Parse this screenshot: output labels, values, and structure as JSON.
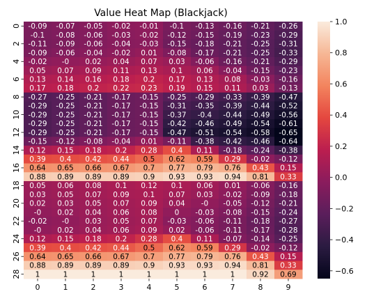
{
  "chart_data": {
    "type": "heatmap",
    "title": "Value Heat Map (Blackjack)",
    "xlabel": "",
    "ylabel": "",
    "x_ticks": [
      "0",
      "1",
      "2",
      "3",
      "4",
      "5",
      "6",
      "7",
      "8",
      "9"
    ],
    "y_ticks": [
      "0",
      "2",
      "4",
      "6",
      "8",
      "10",
      "12",
      "14",
      "16",
      "18",
      "20",
      "22",
      "24",
      "26",
      "28"
    ],
    "colorbar": {
      "min": -0.65,
      "max": 1.0,
      "ticks": [
        "1.0",
        "0.8",
        "0.6",
        "0.4",
        "0.2",
        "0.0",
        "−0.2",
        "−0.4",
        "−0.6"
      ],
      "tick_values": [
        1.0,
        0.8,
        0.6,
        0.4,
        0.2,
        0.0,
        -0.2,
        -0.4,
        -0.6
      ]
    },
    "colormap": "rocket",
    "values": [
      [
        -0.09,
        -0.07,
        -0.05,
        -0.02,
        -0.01,
        -0.1,
        -0.13,
        -0.16,
        -0.21,
        -0.26
      ],
      [
        -0.1,
        -0.08,
        -0.06,
        -0.03,
        -0.02,
        -0.12,
        -0.15,
        -0.19,
        -0.23,
        -0.29
      ],
      [
        -0.11,
        -0.09,
        -0.06,
        -0.04,
        -0.03,
        -0.15,
        -0.18,
        -0.21,
        -0.25,
        -0.31
      ],
      [
        -0.09,
        -0.06,
        -0.04,
        -0.02,
        0.01,
        -0.08,
        -0.17,
        -0.21,
        -0.25,
        -0.33
      ],
      [
        -0.02,
        0,
        0.02,
        0.04,
        0.07,
        0.03,
        -0.06,
        -0.16,
        -0.21,
        -0.29
      ],
      [
        0.05,
        0.07,
        0.09,
        0.11,
        0.13,
        0.1,
        0.06,
        -0.04,
        -0.15,
        -0.23
      ],
      [
        0.13,
        0.14,
        0.16,
        0.18,
        0.2,
        0.17,
        0.13,
        0.08,
        -0.03,
        -0.16
      ],
      [
        0.17,
        0.18,
        0.2,
        0.22,
        0.23,
        0.19,
        0.15,
        0.11,
        0.03,
        -0.13
      ],
      [
        -0.27,
        -0.25,
        -0.21,
        -0.17,
        -0.15,
        -0.25,
        -0.29,
        -0.33,
        -0.39,
        -0.47
      ],
      [
        -0.29,
        -0.25,
        -0.21,
        -0.17,
        -0.15,
        -0.31,
        -0.35,
        -0.39,
        -0.44,
        -0.52
      ],
      [
        -0.29,
        -0.25,
        -0.21,
        -0.17,
        -0.15,
        -0.37,
        -0.4,
        -0.44,
        -0.49,
        -0.56
      ],
      [
        -0.29,
        -0.25,
        -0.21,
        -0.17,
        -0.15,
        -0.42,
        -0.46,
        -0.49,
        -0.54,
        -0.61
      ],
      [
        -0.29,
        -0.25,
        -0.21,
        -0.17,
        -0.15,
        -0.47,
        -0.51,
        -0.54,
        -0.58,
        -0.65
      ],
      [
        -0.15,
        -0.12,
        -0.08,
        -0.04,
        0.01,
        -0.11,
        -0.38,
        -0.42,
        -0.46,
        -0.64
      ],
      [
        0.12,
        0.15,
        0.18,
        0.2,
        0.28,
        0.4,
        0.11,
        -0.18,
        -0.24,
        -0.38
      ],
      [
        0.39,
        0.4,
        0.42,
        0.44,
        0.5,
        0.62,
        0.59,
        0.29,
        -0.02,
        -0.12
      ],
      [
        0.64,
        0.65,
        0.66,
        0.67,
        0.7,
        0.77,
        0.79,
        0.76,
        0.43,
        0.15
      ],
      [
        0.88,
        0.89,
        0.89,
        0.89,
        0.9,
        0.93,
        0.93,
        0.94,
        0.81,
        0.33
      ],
      [
        0.05,
        0.06,
        0.08,
        0.1,
        0.12,
        0.1,
        0.06,
        0.01,
        -0.06,
        -0.16
      ],
      [
        0.03,
        0.05,
        0.07,
        0.09,
        0.1,
        0.07,
        0.03,
        -0.02,
        -0.09,
        -0.18
      ],
      [
        0.02,
        0.03,
        0.05,
        0.07,
        0.09,
        0.04,
        0,
        -0.05,
        -0.12,
        -0.21
      ],
      [
        0,
        0.02,
        0.04,
        0.06,
        0.08,
        0,
        -0.03,
        -0.08,
        -0.15,
        -0.24
      ],
      [
        -0.02,
        0,
        0.03,
        0.05,
        0.07,
        -0.03,
        -0.06,
        -0.11,
        -0.18,
        -0.27
      ],
      [
        0,
        0.02,
        0.04,
        0.06,
        0.09,
        0.02,
        -0.06,
        -0.11,
        -0.17,
        -0.28
      ],
      [
        0.12,
        0.15,
        0.18,
        0.2,
        0.28,
        0.4,
        0.11,
        -0.07,
        -0.14,
        -0.25
      ],
      [
        0.39,
        0.4,
        0.42,
        0.44,
        0.5,
        0.62,
        0.59,
        0.29,
        -0.02,
        -0.12
      ],
      [
        0.64,
        0.65,
        0.66,
        0.67,
        0.7,
        0.77,
        0.79,
        0.76,
        0.43,
        0.15
      ],
      [
        0.88,
        0.89,
        0.89,
        0.89,
        0.9,
        0.93,
        0.93,
        0.94,
        0.81,
        0.33
      ],
      [
        1,
        1,
        1,
        1,
        1,
        1,
        1,
        1,
        0.92,
        0.69
      ]
    ],
    "labels": [
      [
        "-0.09",
        "-0.07",
        "-0.05",
        "-0.02",
        "-0.01",
        "-0.1",
        "-0.13",
        "-0.16",
        "-0.21",
        "-0.26"
      ],
      [
        "-0.1",
        "-0.08",
        "-0.06",
        "-0.03",
        "-0.02",
        "-0.12",
        "-0.15",
        "-0.19",
        "-0.23",
        "-0.29"
      ],
      [
        "-0.11",
        "-0.09",
        "-0.06",
        "-0.04",
        "-0.03",
        "-0.15",
        "-0.18",
        "-0.21",
        "-0.25",
        "-0.31"
      ],
      [
        "-0.09",
        "-0.06",
        "-0.04",
        "-0.02",
        "0.01",
        "-0.08",
        "-0.17",
        "-0.21",
        "-0.25",
        "-0.33"
      ],
      [
        "-0.02",
        "-0",
        "0.02",
        "0.04",
        "0.07",
        "0.03",
        "-0.06",
        "-0.16",
        "-0.21",
        "-0.29"
      ],
      [
        "0.05",
        "0.07",
        "0.09",
        "0.11",
        "0.13",
        "0.1",
        "0.06",
        "-0.04",
        "-0.15",
        "-0.23"
      ],
      [
        "0.13",
        "0.14",
        "0.16",
        "0.18",
        "0.2",
        "0.17",
        "0.13",
        "0.08",
        "-0.03",
        "-0.16"
      ],
      [
        "0.17",
        "0.18",
        "0.2",
        "0.22",
        "0.23",
        "0.19",
        "0.15",
        "0.11",
        "0.03",
        "-0.13"
      ],
      [
        "-0.27",
        "-0.25",
        "-0.21",
        "-0.17",
        "-0.15",
        "-0.25",
        "-0.29",
        "-0.33",
        "-0.39",
        "-0.47"
      ],
      [
        "-0.29",
        "-0.25",
        "-0.21",
        "-0.17",
        "-0.15",
        "-0.31",
        "-0.35",
        "-0.39",
        "-0.44",
        "-0.52"
      ],
      [
        "-0.29",
        "-0.25",
        "-0.21",
        "-0.17",
        "-0.15",
        "-0.37",
        "-0.4",
        "-0.44",
        "-0.49",
        "-0.56"
      ],
      [
        "-0.29",
        "-0.25",
        "-0.21",
        "-0.17",
        "-0.15",
        "-0.42",
        "-0.46",
        "-0.49",
        "-0.54",
        "-0.61"
      ],
      [
        "-0.29",
        "-0.25",
        "-0.21",
        "-0.17",
        "-0.15",
        "-0.47",
        "-0.51",
        "-0.54",
        "-0.58",
        "-0.65"
      ],
      [
        "-0.15",
        "-0.12",
        "-0.08",
        "-0.04",
        "0.01",
        "-0.11",
        "-0.38",
        "-0.42",
        "-0.46",
        "-0.64"
      ],
      [
        "0.12",
        "0.15",
        "0.18",
        "0.2",
        "0.28",
        "0.4",
        "0.11",
        "-0.18",
        "-0.24",
        "-0.38"
      ],
      [
        "0.39",
        "0.4",
        "0.42",
        "0.44",
        "0.5",
        "0.62",
        "0.59",
        "0.29",
        "-0.02",
        "-0.12"
      ],
      [
        "0.64",
        "0.65",
        "0.66",
        "0.67",
        "0.7",
        "0.77",
        "0.79",
        "0.76",
        "0.43",
        "0.15"
      ],
      [
        "0.88",
        "0.89",
        "0.89",
        "0.89",
        "0.9",
        "0.93",
        "0.93",
        "0.94",
        "0.81",
        "0.33"
      ],
      [
        "0.05",
        "0.06",
        "0.08",
        "0.1",
        "0.12",
        "0.1",
        "0.06",
        "0.01",
        "-0.06",
        "-0.16"
      ],
      [
        "0.03",
        "0.05",
        "0.07",
        "0.09",
        "0.1",
        "0.07",
        "0.03",
        "-0.02",
        "-0.09",
        "-0.18"
      ],
      [
        "0.02",
        "0.03",
        "0.05",
        "0.07",
        "0.09",
        "0.04",
        "-0",
        "-0.05",
        "-0.12",
        "-0.21"
      ],
      [
        "-0",
        "0.02",
        "0.04",
        "0.06",
        "0.08",
        "0",
        "-0.03",
        "-0.08",
        "-0.15",
        "-0.24"
      ],
      [
        "-0.02",
        "-0",
        "0.03",
        "0.05",
        "0.07",
        "-0.03",
        "-0.06",
        "-0.11",
        "-0.18",
        "-0.27"
      ],
      [
        "-0",
        "0.02",
        "0.04",
        "0.06",
        "0.09",
        "0.02",
        "-0.06",
        "-0.11",
        "-0.17",
        "-0.28"
      ],
      [
        "0.12",
        "0.15",
        "0.18",
        "0.2",
        "0.28",
        "0.4",
        "0.11",
        "-0.07",
        "-0.14",
        "-0.25"
      ],
      [
        "0.39",
        "0.4",
        "0.42",
        "0.44",
        "0.5",
        "0.62",
        "0.59",
        "0.29",
        "-0.02",
        "-0.12"
      ],
      [
        "0.64",
        "0.65",
        "0.66",
        "0.67",
        "0.7",
        "0.77",
        "0.79",
        "0.76",
        "0.43",
        "0.15"
      ],
      [
        "0.88",
        "0.89",
        "0.89",
        "0.89",
        "0.9",
        "0.93",
        "0.93",
        "0.94",
        "0.81",
        "0.33"
      ],
      [
        "1",
        "1",
        "1",
        "1",
        "1",
        "1",
        "1",
        "1",
        "0.92",
        "0.69"
      ]
    ]
  }
}
